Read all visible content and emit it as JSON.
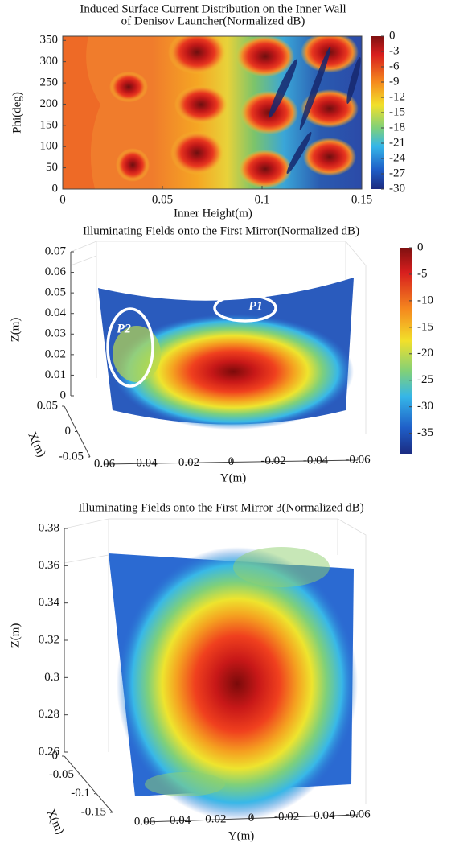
{
  "chart_data": [
    {
      "type": "contour",
      "title": [
        "Induced Surface Current Distribution on the Inner Wall",
        "of Denisov Launcher(Normalized dB)"
      ],
      "x_label": "Inner Height(m)",
      "y_label": "Phi(deg)",
      "xlim": [
        0,
        0.15
      ],
      "xticks": [
        0,
        0.05,
        0.1,
        0.15
      ],
      "ylim": [
        0,
        360
      ],
      "yticks": [
        0,
        50,
        100,
        150,
        200,
        250,
        300,
        350
      ],
      "clim": [
        -30,
        0
      ],
      "colorbar_ticks": [
        0,
        -3,
        -6,
        -9,
        -12,
        -15,
        -18,
        -21,
        -24,
        -27,
        -30
      ]
    },
    {
      "type": "surface",
      "title": "Illuminating Fields onto the First Mirror(Normalized dB)",
      "x_label": "X(m)",
      "y_label": "Y(m)",
      "z_label": "Z(m)",
      "xlim": [
        0.05,
        -0.05
      ],
      "xticks": [
        0.05,
        0,
        -0.05
      ],
      "ylim": [
        0.06,
        -0.06
      ],
      "yticks": [
        0.06,
        0.04,
        0.02,
        0,
        -0.02,
        -0.04,
        -0.06
      ],
      "zlim": [
        0,
        0.07
      ],
      "zticks": [
        0,
        0.01,
        0.02,
        0.03,
        0.04,
        0.05,
        0.06,
        0.07
      ],
      "clim": [
        -39,
        0
      ],
      "colorbar_ticks": [
        0,
        -5,
        -10,
        -15,
        -20,
        -25,
        -30,
        -35
      ],
      "annotations": [
        "P1",
        "P2"
      ]
    },
    {
      "type": "surface",
      "title": "Illuminating Fields onto the First Mirror 3(Normalized dB)",
      "x_label": "X(m)",
      "y_label": "Y(m)",
      "z_label": "Z(m)",
      "xlim": [
        0,
        -0.15
      ],
      "xticks": [
        0,
        -0.05,
        -0.1,
        -0.15
      ],
      "ylim": [
        0.06,
        -0.06
      ],
      "yticks": [
        0.06,
        0.04,
        0.02,
        0,
        -0.02,
        -0.04,
        -0.06
      ],
      "zlim": [
        0.26,
        0.38
      ],
      "zticks": [
        0.26,
        0.28,
        0.3,
        0.32,
        0.34,
        0.36,
        0.38
      ]
    }
  ]
}
